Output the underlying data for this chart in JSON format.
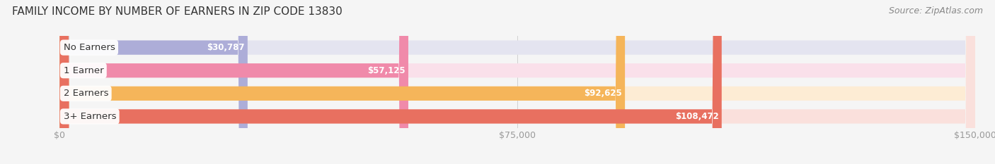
{
  "title": "FAMILY INCOME BY NUMBER OF EARNERS IN ZIP CODE 13830",
  "source": "Source: ZipAtlas.com",
  "categories": [
    "No Earners",
    "1 Earner",
    "2 Earners",
    "3+ Earners"
  ],
  "values": [
    30787,
    57125,
    92625,
    108472
  ],
  "value_labels": [
    "$30,787",
    "$57,125",
    "$92,625",
    "$108,472"
  ],
  "bar_colors": [
    "#adadd8",
    "#f08aaa",
    "#f5b55a",
    "#e87060"
  ],
  "bar_bg_colors": [
    "#e4e4f0",
    "#fae0ea",
    "#fdecd4",
    "#fae0dc"
  ],
  "xmax": 150000,
  "xticks": [
    0,
    75000,
    150000
  ],
  "xtick_labels": [
    "$0",
    "$75,000",
    "$150,000"
  ],
  "title_fontsize": 11,
  "source_fontsize": 9,
  "label_fontsize": 9.5,
  "value_fontsize": 8.5,
  "tick_fontsize": 9,
  "background_color": "#f5f5f5",
  "bar_height": 0.62,
  "bar_gap": 0.38
}
